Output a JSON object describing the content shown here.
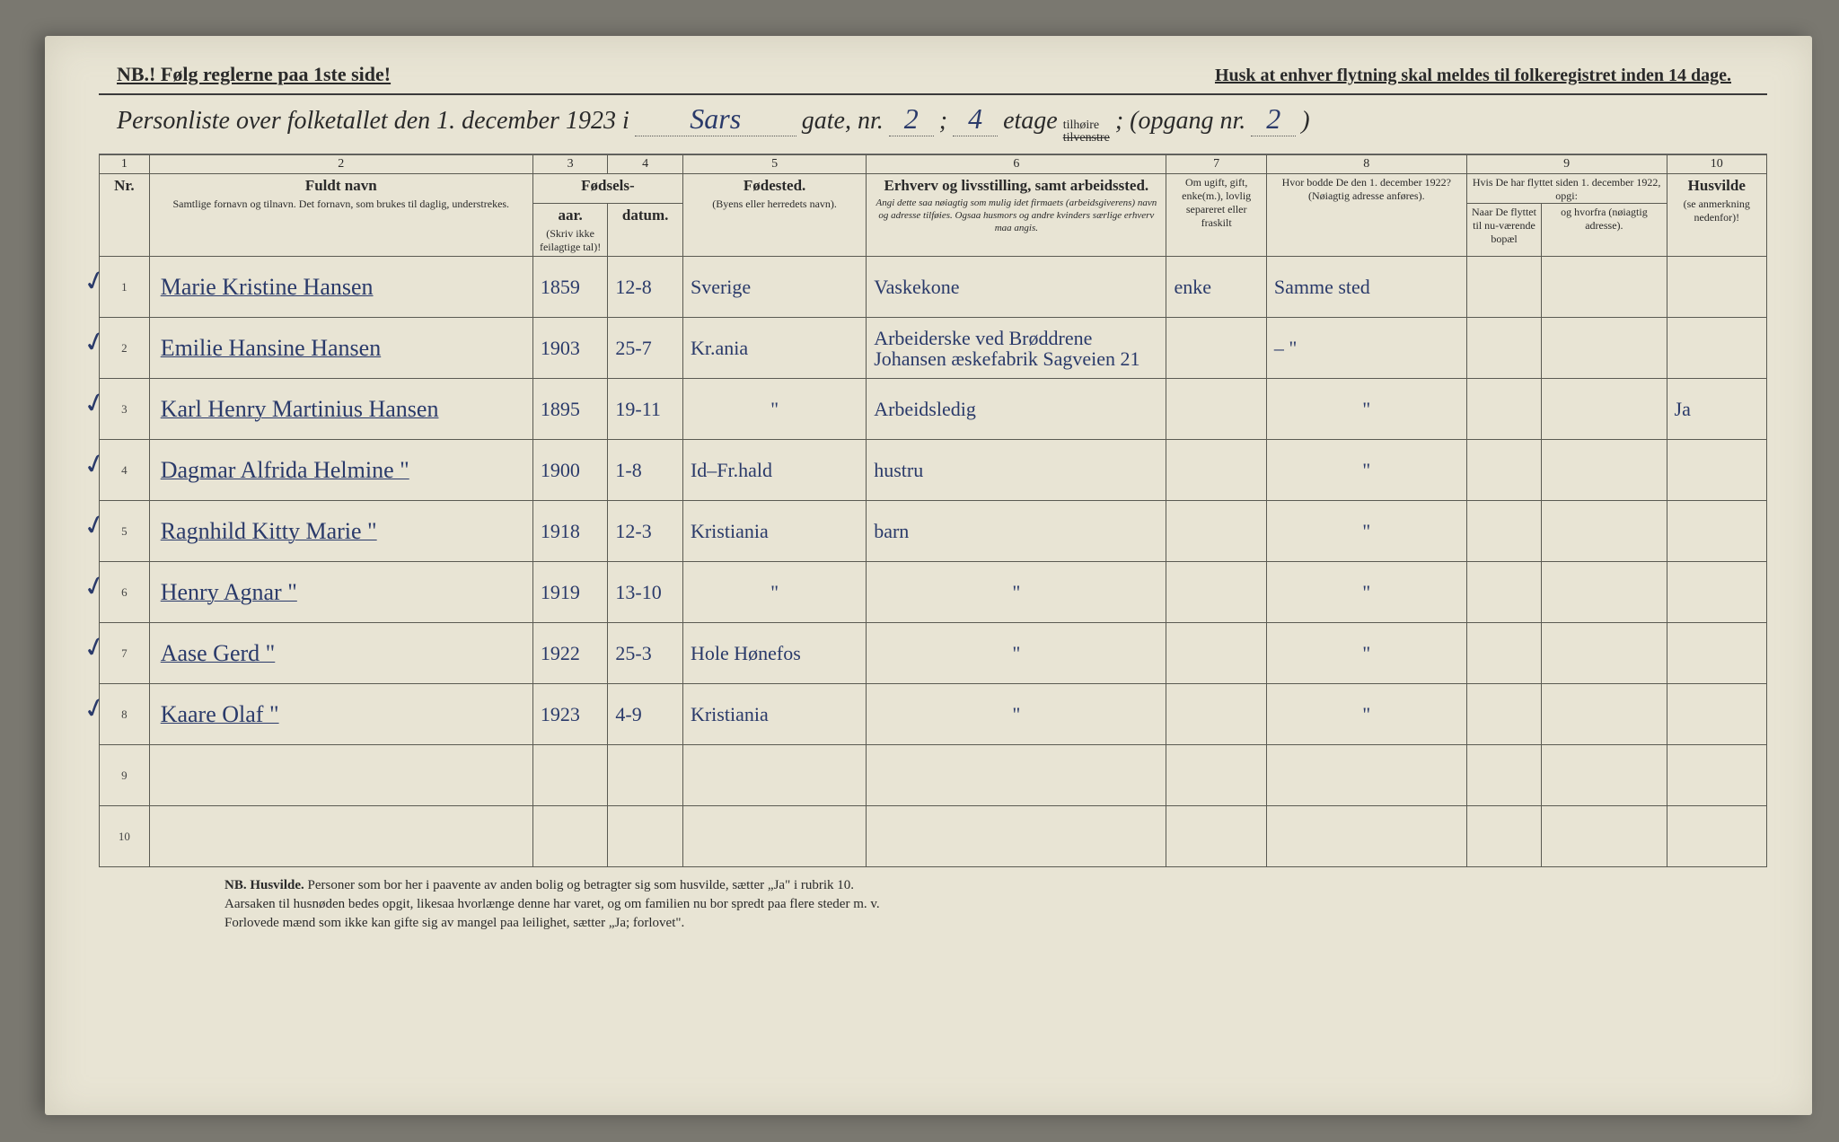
{
  "header": {
    "nb_note": "NB.! Følg reglerne paa 1ste side!",
    "husk_note": "Husk at enhver flytning skal meldes til folkeregistret inden 14 dage.",
    "title_prefix": "Personliste over folketallet den 1. december 1923 i",
    "street_name": "Sars",
    "gate_label": "gate, nr.",
    "gate_nr": "2",
    "semicolon": ";",
    "etage_nr": "4",
    "etage_label": "etage",
    "side_top": "tilhøire",
    "side_bot": "tilvenstre",
    "opgang_label": "; (opgang nr.",
    "opgang_nr": "2",
    "close": ")"
  },
  "columns": {
    "numbers": [
      "1",
      "2",
      "3",
      "4",
      "5",
      "6",
      "7",
      "8",
      "9",
      "10"
    ],
    "c1": "Nr.",
    "c2_main": "Fuldt navn",
    "c2_sub": "Samtlige fornavn og tilnavn. Det fornavn, som brukes til daglig, understrekes.",
    "c34_main": "Fødsels-",
    "c3": "aar.",
    "c4": "datum.",
    "c34_sub": "(Skriv ikke feilagtige tal)!",
    "c5_main": "Fødested.",
    "c5_sub": "(Byens eller herredets navn).",
    "c6_main": "Erhverv og livsstilling, samt arbeidssted.",
    "c6_sub": "Angi dette saa nøiagtig som mulig idet firmaets (arbeidsgiverens) navn og adresse tilføies. Ogsaa husmors og andre kvinders særlige erhverv maa angis.",
    "c7": "Om ugift, gift, enke(m.), lovlig separeret eller fraskilt",
    "c8_main": "Hvor bodde De den 1. december 1922?",
    "c8_sub": "(Nøiagtig adresse anføres).",
    "c9_main": "Hvis De har flyttet siden 1. december 1922, opgi:",
    "c9a": "Naar De flyttet til nu-værende bopæl",
    "c9b": "og hvorfra (nøiagtig adresse).",
    "c10_main": "Husvilde",
    "c10_sub": "(se anmerkning nedenfor)!"
  },
  "rows": [
    {
      "nr": "1",
      "name": "Marie Kristine Hansen",
      "aar": "1859",
      "datum": "12-8",
      "sted": "Sverige",
      "erhverv": "Vaskekone",
      "status": "enke",
      "bodde": "Samme sted",
      "flyt_naar": "",
      "flyt_fra": "",
      "husvilde": ""
    },
    {
      "nr": "2",
      "name": "Emilie Hansine Hansen",
      "aar": "1903",
      "datum": "25-7",
      "sted": "Kr.ania",
      "erhverv": "Arbeiderske ved Brøddrene Johansen æskefabrik Sagveien 21",
      "status": "",
      "bodde": "– \"",
      "flyt_naar": "",
      "flyt_fra": "",
      "husvilde": ""
    },
    {
      "nr": "3",
      "name": "Karl Henry Martinius Hansen",
      "aar": "1895",
      "datum": "19-11",
      "sted": "\"",
      "erhverv": "Arbeidsledig",
      "status": "",
      "bodde": "\"",
      "flyt_naar": "",
      "flyt_fra": "",
      "husvilde": "Ja"
    },
    {
      "nr": "4",
      "name": "Dagmar Alfrida Helmine  \"",
      "aar": "1900",
      "datum": "1-8",
      "sted": "Id–Fr.hald",
      "erhverv": "hustru",
      "status": "",
      "bodde": "\"",
      "flyt_naar": "",
      "flyt_fra": "",
      "husvilde": ""
    },
    {
      "nr": "5",
      "name": "Ragnhild Kitty Marie  \"",
      "aar": "1918",
      "datum": "12-3",
      "sted": "Kristiania",
      "erhverv": "barn",
      "status": "",
      "bodde": "\"",
      "flyt_naar": "",
      "flyt_fra": "",
      "husvilde": ""
    },
    {
      "nr": "6",
      "name": "Henry Agnar        \"",
      "aar": "1919",
      "datum": "13-10",
      "sted": "\"",
      "erhverv": "\"",
      "status": "",
      "bodde": "\"",
      "flyt_naar": "",
      "flyt_fra": "",
      "husvilde": ""
    },
    {
      "nr": "7",
      "name": "Aase Gerd         \"",
      "aar": "1922",
      "datum": "25-3",
      "sted": "Hole Hønefos",
      "erhverv": "\"",
      "status": "",
      "bodde": "\"",
      "flyt_naar": "",
      "flyt_fra": "",
      "husvilde": ""
    },
    {
      "nr": "8",
      "name": "Kaare Olaf        \"",
      "aar": "1923",
      "datum": "4-9",
      "sted": "Kristiania",
      "erhverv": "\"",
      "status": "",
      "bodde": "\"",
      "flyt_naar": "",
      "flyt_fra": "",
      "husvilde": ""
    },
    {
      "nr": "9",
      "name": "",
      "aar": "",
      "datum": "",
      "sted": "",
      "erhverv": "",
      "status": "",
      "bodde": "",
      "flyt_naar": "",
      "flyt_fra": "",
      "husvilde": ""
    },
    {
      "nr": "10",
      "name": "",
      "aar": "",
      "datum": "",
      "sted": "",
      "erhverv": "",
      "status": "",
      "bodde": "",
      "flyt_naar": "",
      "flyt_fra": "",
      "husvilde": ""
    }
  ],
  "footer": {
    "nb": "NB.  Husvilde.",
    "line1": "Personer som bor her i paavente av anden bolig og betragter sig som husvilde, sætter „Ja\" i rubrik 10.",
    "line2": "Aarsaken til husnøden bedes opgit, likesaa hvorlænge denne har varet, og om familien nu bor spredt paa flere steder m. v.",
    "line3": "Forlovede mænd som ikke kan gifte sig av mangel paa leilighet, sætter „Ja; forlovet\"."
  },
  "colors": {
    "paper": "#e8e4d4",
    "ink_print": "#2a2a2a",
    "ink_hand": "#2a3a6a",
    "rule": "#5a5a52"
  },
  "col_widths_pct": [
    3,
    23,
    4.5,
    4.5,
    11,
    18,
    6,
    12,
    4.5,
    7.5,
    6
  ]
}
